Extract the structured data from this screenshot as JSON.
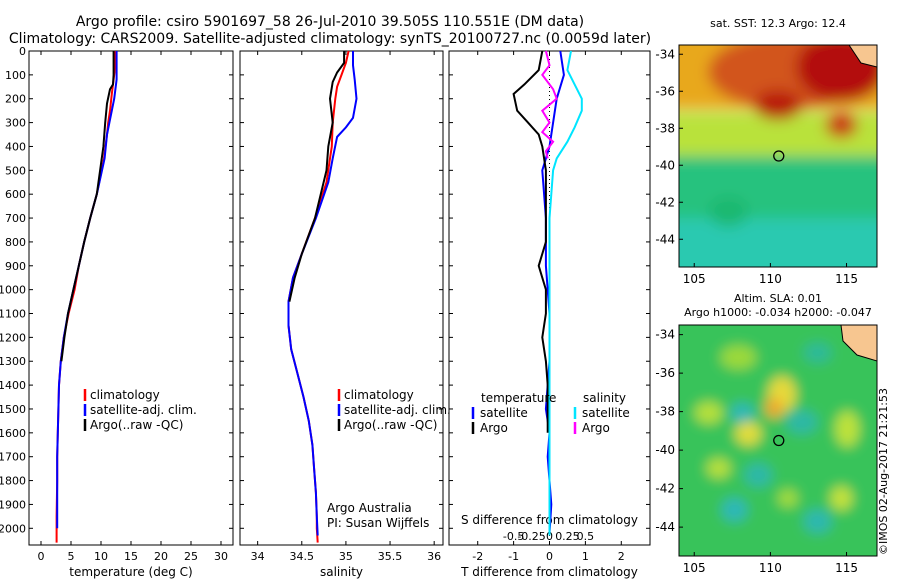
{
  "title": {
    "line1": "Argo profile: csiro 5901697_58 26-Jul-2010 39.505S 110.551E (DM data)",
    "line2": "Climatology: CARS2009. Satellite-adjusted climatology: synTS_20100727.nc (0.0059d later)"
  },
  "stamp": "©IMOS 02-Aug-2017 21:21:53",
  "colors": {
    "climatology": "#ff0000",
    "satellite": "#0000ff",
    "argo": "#000000",
    "s_satellite": "#00e5ff",
    "s_argo": "#ff00ff"
  },
  "chart_data": [
    {
      "type": "line",
      "id": "temperature",
      "xlabel": "temperature (deg C)",
      "xticks": [
        "0",
        "5",
        "10",
        "15",
        "20",
        "25",
        "30"
      ],
      "xlim": [
        -2,
        32
      ],
      "yticks": [
        "0",
        "100",
        "200",
        "300",
        "400",
        "500",
        "600",
        "700",
        "800",
        "900",
        "1000",
        "1100",
        "1200",
        "1300",
        "1400",
        "1500",
        "1600",
        "1700",
        "1800",
        "1900",
        "2000"
      ],
      "ylim": [
        0,
        2070
      ],
      "legend": [
        "climatology",
        "satellite-adj. clim.",
        "Argo(..raw -QC)"
      ],
      "series": [
        {
          "name": "climatology",
          "color": "red",
          "x": [
            12.4,
            12.4,
            12.2,
            12.0,
            11.8,
            11.5,
            11.2,
            11.0,
            10.5,
            9.3,
            8.2,
            7.2,
            6.3,
            5.6,
            4.6,
            3.8,
            3.3,
            3.0,
            2.9,
            2.8,
            2.7,
            2.7,
            2.6,
            2.6
          ],
          "y": [
            0,
            60,
            100,
            140,
            180,
            250,
            300,
            350,
            450,
            600,
            700,
            800,
            900,
            1000,
            1100,
            1200,
            1300,
            1400,
            1500,
            1600,
            1700,
            1800,
            1950,
            2060
          ]
        },
        {
          "name": "satellite-adj. clim.",
          "color": "blue",
          "x": [
            12.6,
            12.6,
            12.6,
            12.4,
            12.2,
            11.8,
            11.4,
            11.0,
            10.6,
            9.3,
            8.2,
            7.2,
            6.3,
            5.4,
            4.5,
            3.8,
            3.3,
            3.0,
            2.9,
            2.8,
            2.7,
            2.7,
            2.7
          ],
          "y": [
            0,
            60,
            120,
            160,
            200,
            250,
            300,
            350,
            450,
            600,
            700,
            800,
            900,
            1000,
            1100,
            1200,
            1300,
            1400,
            1500,
            1600,
            1700,
            1850,
            2000
          ]
        },
        {
          "name": "Argo(..raw -QC)",
          "color": "black",
          "x": [
            12.1,
            12.1,
            12.0,
            11.5,
            11.0,
            10.7,
            10.4,
            9.3,
            8.2,
            7.2,
            6.3,
            5.4,
            4.5,
            3.9,
            3.4
          ],
          "y": [
            0,
            100,
            140,
            160,
            220,
            300,
            400,
            600,
            700,
            800,
            900,
            1000,
            1100,
            1200,
            1300
          ]
        }
      ]
    },
    {
      "type": "line",
      "id": "salinity",
      "xlabel": "salinity",
      "xticks": [
        "34",
        "34.5",
        "35",
        "35.5",
        "36"
      ],
      "xlim": [
        33.8,
        36.1
      ],
      "ylim": [
        0,
        2070
      ],
      "legend": [
        "climatology",
        "satellite-adj. clim.",
        "Argo(..raw -QC)"
      ],
      "annotation": [
        "Argo Australia",
        "PI: Susan Wijffels"
      ],
      "series": [
        {
          "name": "climatology",
          "color": "red",
          "x": [
            35.03,
            35.0,
            34.95,
            34.9,
            34.88,
            34.85,
            34.84,
            34.82,
            34.78,
            34.65,
            34.5,
            34.4,
            34.35,
            34.35,
            34.38,
            34.45,
            34.52,
            34.58,
            34.62,
            34.64,
            34.66,
            34.67,
            34.67,
            34.68
          ],
          "y": [
            0,
            50,
            100,
            150,
            200,
            300,
            400,
            450,
            550,
            700,
            850,
            950,
            1050,
            1150,
            1250,
            1350,
            1450,
            1550,
            1650,
            1750,
            1850,
            1950,
            2000,
            2060
          ]
        },
        {
          "name": "satellite-adj. clim.",
          "color": "blue",
          "x": [
            35.08,
            35.08,
            35.1,
            35.12,
            35.08,
            35.0,
            34.9,
            34.85,
            34.8,
            34.66,
            34.5,
            34.4,
            34.35,
            34.35,
            34.38,
            34.45,
            34.52,
            34.58,
            34.62,
            34.64,
            34.66,
            34.67,
            34.68
          ],
          "y": [
            0,
            60,
            120,
            200,
            280,
            320,
            360,
            450,
            550,
            700,
            850,
            950,
            1050,
            1150,
            1250,
            1350,
            1450,
            1550,
            1650,
            1750,
            1850,
            1950,
            2030
          ]
        },
        {
          "name": "Argo(..raw -QC)",
          "color": "black",
          "x": [
            34.98,
            34.98,
            34.9,
            34.85,
            34.82,
            34.85,
            34.8,
            34.78,
            34.65,
            34.5,
            34.42,
            34.36
          ],
          "y": [
            0,
            50,
            90,
            130,
            200,
            300,
            400,
            500,
            700,
            850,
            950,
            1050
          ]
        }
      ]
    },
    {
      "type": "line",
      "id": "difference",
      "xlabel": "T difference from climatology",
      "toplabel": "S difference from climatology",
      "xticks": [
        "-2",
        "-1",
        "0",
        "1",
        "2"
      ],
      "toplabel_ticks": [
        "-0.5",
        "-0.25",
        "0",
        "0.25",
        "0.5"
      ],
      "xlim": [
        -2.8,
        2.8
      ],
      "ylim": [
        0,
        2070
      ],
      "legend_left_title": "temperature",
      "legend_right_title": "salinity",
      "legend_left": [
        "satellite",
        "Argo"
      ],
      "legend_right": [
        "satellite",
        "Argo"
      ],
      "series": [
        {
          "name": "temperature satellite",
          "color": "blue",
          "x": [
            0.3,
            0.4,
            0.2,
            0.1,
            0.0,
            -0.1,
            -0.2,
            -0.1,
            -0.1,
            0.0,
            0.0,
            -0.1,
            0.0,
            -0.05,
            0.0,
            0.05,
            0.0
          ],
          "y": [
            0,
            100,
            200,
            300,
            400,
            450,
            500,
            700,
            900,
            1100,
            1300,
            1500,
            1600,
            1700,
            1800,
            1900,
            2020
          ]
        },
        {
          "name": "temperature Argo",
          "color": "black",
          "x": [
            -0.2,
            -0.3,
            -0.7,
            -1.0,
            -0.9,
            -0.6,
            -0.3,
            -0.2,
            -0.1,
            -0.1,
            -0.3,
            -0.1,
            -0.1,
            -0.2,
            -0.1,
            -0.05,
            -0.05
          ],
          "y": [
            0,
            80,
            140,
            180,
            250,
            300,
            350,
            400,
            500,
            800,
            900,
            1000,
            1100,
            1200,
            1300,
            1400,
            1600
          ]
        },
        {
          "name": "salinity satellite",
          "color": "cyan",
          "x": [
            0.6,
            0.5,
            0.7,
            0.9,
            0.9,
            0.7,
            0.5,
            0.2,
            0.1,
            0.0,
            0.0,
            0.0,
            0.0,
            0.0,
            0.0,
            0.0,
            0.0
          ],
          "y": [
            0,
            80,
            140,
            200,
            250,
            320,
            380,
            450,
            500,
            700,
            900,
            1100,
            1300,
            1500,
            1700,
            1900,
            2030
          ]
        },
        {
          "name": "salinity Argo",
          "color": "magenta",
          "x": [
            -0.1,
            0.0,
            -0.2,
            0.1,
            0.2,
            -0.2,
            0.0,
            -0.2,
            0.1,
            -0.1,
            -0.05
          ],
          "y": [
            0,
            60,
            100,
            160,
            200,
            250,
            300,
            340,
            380,
            420,
            450
          ]
        }
      ]
    },
    {
      "type": "heatmap",
      "id": "sst-map",
      "title": "sat. SST: 12.3 Argo: 12.4",
      "xticks": [
        "105",
        "110",
        "115"
      ],
      "yticks": [
        "-34",
        "-36",
        "-38",
        "-40",
        "-42",
        "-44"
      ],
      "xlim": [
        104,
        117
      ],
      "ylim": [
        -45.5,
        -33.5
      ],
      "marker": {
        "lon": 110.55,
        "lat": -39.5
      }
    },
    {
      "type": "heatmap",
      "id": "sla-map",
      "title_line1": "Altim. SLA: 0.01",
      "title_line2": "Argo h1000: -0.034 h2000: -0.047",
      "xticks": [
        "105",
        "110",
        "115"
      ],
      "yticks": [
        "-34",
        "-36",
        "-38",
        "-40",
        "-42",
        "-44"
      ],
      "xlim": [
        104,
        117
      ],
      "ylim": [
        -45.5,
        -33.5
      ],
      "marker": {
        "lon": 110.55,
        "lat": -39.5
      }
    }
  ]
}
